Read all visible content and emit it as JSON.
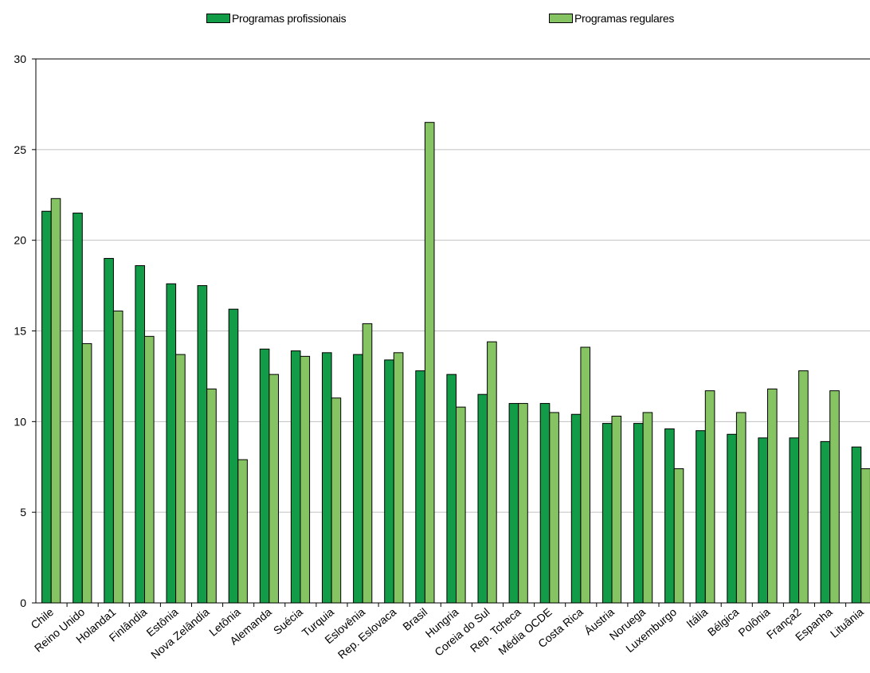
{
  "chart_data": {
    "type": "bar",
    "categories": [
      "Chile",
      "Reino Unido",
      "Holanda1",
      "Finlândia",
      "Estônia",
      "Nova Zelândia",
      "Letônia",
      "Alemanda",
      "Suécia",
      "Turquia",
      "Eslovênia",
      "Rep. Eslovaca",
      "Brasil",
      "Hungria",
      "Coreia do Sul",
      "Rep. Tcheca",
      "Média OCDE",
      "Costa Rica",
      "Áustria",
      "Noruega",
      "Luxemburgo",
      "Itália",
      "Bélgica",
      "Polônia",
      "França2",
      "Espanha",
      "Lituânia"
    ],
    "series": [
      {
        "name": "Programas profissionais",
        "color": "#129c48",
        "values": [
          21.6,
          21.5,
          19.0,
          18.6,
          17.6,
          17.5,
          16.2,
          14.0,
          13.9,
          13.8,
          13.7,
          13.4,
          12.8,
          12.6,
          11.5,
          11.0,
          11.0,
          10.4,
          9.9,
          9.9,
          9.6,
          9.5,
          9.3,
          9.1,
          9.1,
          8.9,
          8.6
        ]
      },
      {
        "name": "Programas regulares",
        "color": "#86c363",
        "values": [
          22.3,
          14.3,
          16.1,
          14.7,
          13.7,
          11.8,
          7.9,
          12.6,
          13.6,
          11.3,
          15.4,
          13.8,
          26.5,
          10.8,
          14.4,
          11.0,
          10.5,
          14.1,
          10.3,
          10.5,
          7.4,
          11.7,
          10.5,
          11.8,
          12.8,
          11.7,
          7.4
        ]
      }
    ],
    "ylim": [
      0,
      30
    ],
    "yticks": [
      0,
      5,
      10,
      15,
      20,
      25,
      30
    ],
    "grid": true,
    "legend": "top"
  }
}
